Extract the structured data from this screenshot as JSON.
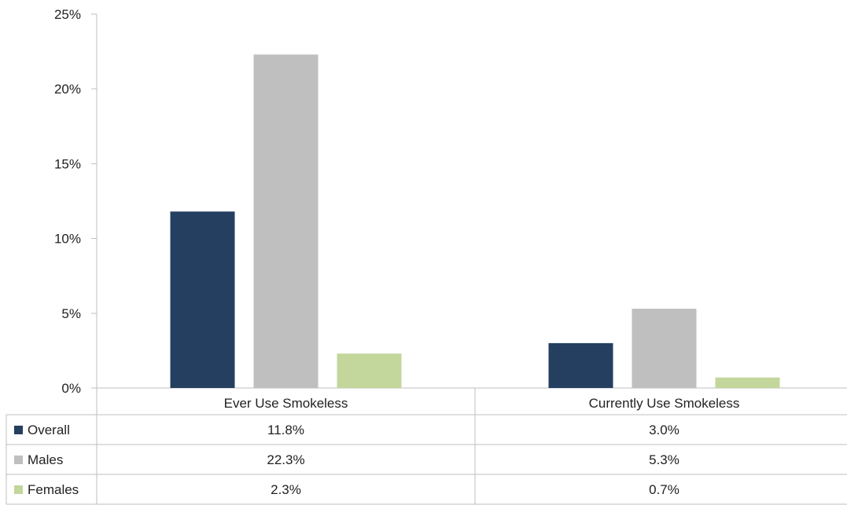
{
  "chart_data": {
    "type": "bar",
    "categories": [
      "Ever Use Smokeless",
      "Currently Use Smokeless"
    ],
    "series": [
      {
        "name": "Overall",
        "values": [
          11.8,
          3.0
        ],
        "labels": [
          "11.8%",
          "3.0%"
        ],
        "color": "#243f60"
      },
      {
        "name": "Males",
        "values": [
          22.3,
          5.3
        ],
        "labels": [
          "22.3%",
          "5.3%"
        ],
        "color": "#bfbfbf"
      },
      {
        "name": "Females",
        "values": [
          2.3,
          0.7
        ],
        "labels": [
          "2.3%",
          "0.7%"
        ],
        "color": "#c3d69b"
      }
    ],
    "yticks": [
      "0%",
      "5%",
      "10%",
      "15%",
      "20%",
      "25%"
    ],
    "ylim": [
      0,
      25
    ],
    "grid": false,
    "legend": "data-table"
  }
}
